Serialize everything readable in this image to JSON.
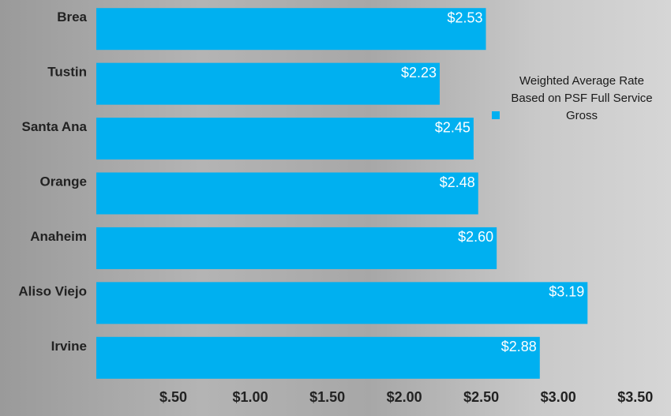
{
  "chart_data": {
    "type": "bar",
    "orientation": "horizontal",
    "categories": [
      "Brea",
      "Tustin",
      "Santa Ana",
      "Orange",
      "Anaheim",
      "Aliso Viejo",
      "Irvine"
    ],
    "series": [
      {
        "name": "Weighted Average Rate Based on PSF Full Service Gross",
        "color": "#00b0f0",
        "values": [
          2.53,
          2.23,
          2.45,
          2.48,
          2.6,
          3.19,
          2.88
        ],
        "value_labels": [
          "$2.53",
          "$2.23",
          "$2.45",
          "$2.48",
          "$2.60",
          "$3.19",
          "$2.88"
        ]
      }
    ],
    "xlim": [
      0,
      3.65
    ],
    "xticks": [
      {
        "value": 0.5,
        "label": "$.50"
      },
      {
        "value": 1.0,
        "label": "$1.00"
      },
      {
        "value": 1.5,
        "label": "$1.50"
      },
      {
        "value": 2.0,
        "label": "$2.00"
      },
      {
        "value": 2.5,
        "label": "$2.50"
      },
      {
        "value": 3.0,
        "label": "$3.00"
      },
      {
        "value": 3.5,
        "label": "$3.50"
      }
    ],
    "legend": "right",
    "grid": false
  }
}
